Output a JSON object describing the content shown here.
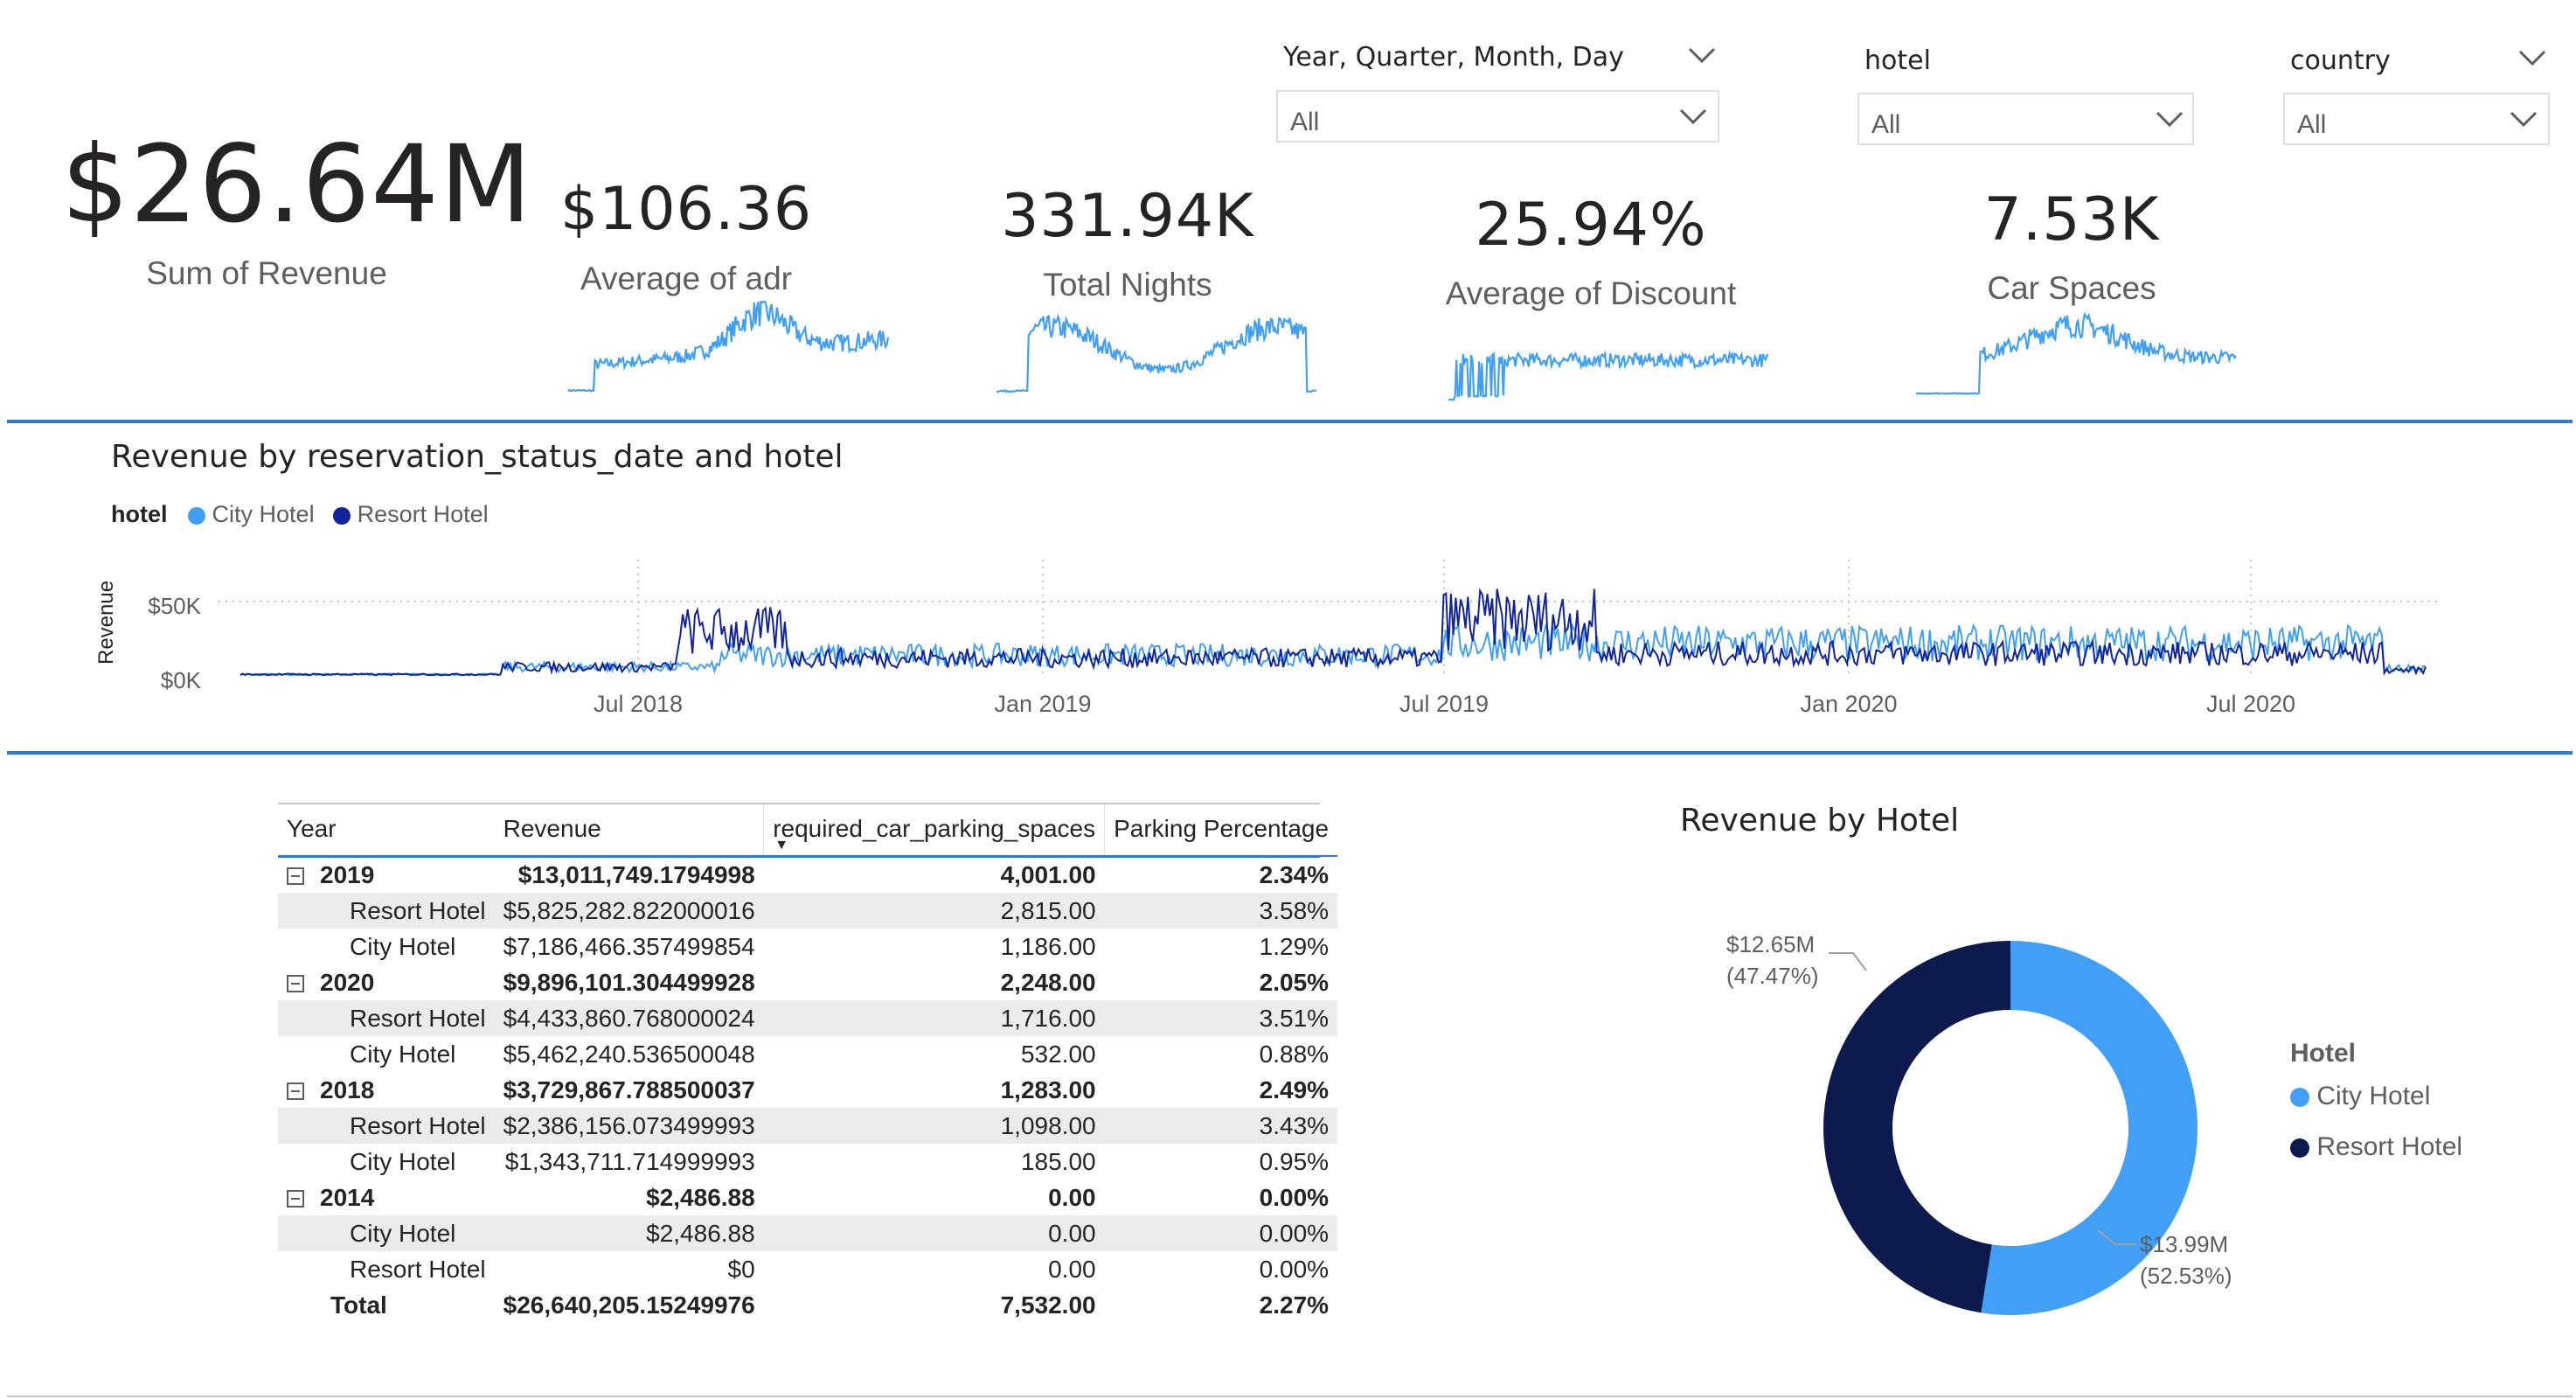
{
  "kpis": {
    "revenue": {
      "value": "$26.64M",
      "label": "Sum of Revenue"
    },
    "adr": {
      "value": "$106.36",
      "label": "Average of adr"
    },
    "nights": {
      "value": "331.94K",
      "label": "Total Nights"
    },
    "discount": {
      "value": "25.94%",
      "label": "Average of Discount"
    },
    "car_spaces": {
      "value": "7.53K",
      "label": "Car Spaces"
    }
  },
  "slicers": {
    "date": {
      "title": "Year, Quarter, Month, Day",
      "value": "All"
    },
    "hotel": {
      "title": "hotel",
      "value": "All"
    },
    "country": {
      "title": "country",
      "value": "All"
    }
  },
  "line_chart": {
    "title": "Revenue by reservation_status_date and hotel",
    "legend_title": "hotel",
    "legend_items": [
      "City Hotel",
      "Resort Hotel"
    ],
    "y_axis_label": "Revenue",
    "y_ticks": [
      "$50K",
      "$0K"
    ],
    "x_ticks": [
      "Jul 2018",
      "Jan 2019",
      "Jul 2019",
      "Jan 2020",
      "Jul 2020"
    ]
  },
  "matrix": {
    "headers": [
      "Year",
      "Revenue",
      "required_car_parking_spaces",
      "Parking Percentage"
    ],
    "rows": [
      {
        "level": "year",
        "label": "2019",
        "revenue": "$13,011,749.1794998",
        "parking": "4,001.00",
        "pct": "2.34%"
      },
      {
        "level": "hotel",
        "label": "Resort Hotel",
        "revenue": "$5,825,282.822000016",
        "parking": "2,815.00",
        "pct": "3.58%"
      },
      {
        "level": "hotel",
        "label": "City Hotel",
        "revenue": "$7,186,466.357499854",
        "parking": "1,186.00",
        "pct": "1.29%"
      },
      {
        "level": "year",
        "label": "2020",
        "revenue": "$9,896,101.304499928",
        "parking": "2,248.00",
        "pct": "2.05%"
      },
      {
        "level": "hotel",
        "label": "Resort Hotel",
        "revenue": "$4,433,860.768000024",
        "parking": "1,716.00",
        "pct": "3.51%"
      },
      {
        "level": "hotel",
        "label": "City Hotel",
        "revenue": "$5,462,240.536500048",
        "parking": "532.00",
        "pct": "0.88%"
      },
      {
        "level": "year",
        "label": "2018",
        "revenue": "$3,729,867.788500037",
        "parking": "1,283.00",
        "pct": "2.49%"
      },
      {
        "level": "hotel",
        "label": "Resort Hotel",
        "revenue": "$2,386,156.073499993",
        "parking": "1,098.00",
        "pct": "3.43%"
      },
      {
        "level": "hotel",
        "label": "City Hotel",
        "revenue": "$1,343,711.714999993",
        "parking": "185.00",
        "pct": "0.95%"
      },
      {
        "level": "year",
        "label": "2014",
        "revenue": "$2,486.88",
        "parking": "0.00",
        "pct": "0.00%"
      },
      {
        "level": "hotel",
        "label": "City Hotel",
        "revenue": "$2,486.88",
        "parking": "0.00",
        "pct": "0.00%"
      },
      {
        "level": "hotel",
        "label": "Resort Hotel",
        "revenue": "$0",
        "parking": "0.00",
        "pct": "0.00%"
      },
      {
        "level": "total",
        "label": "Total",
        "revenue": "$26,640,205.15249976",
        "parking": "7,532.00",
        "pct": "2.27%"
      }
    ]
  },
  "donut": {
    "title": "Revenue by Hotel",
    "legend_title": "Hotel",
    "legend_items": [
      "City Hotel",
      "Resort Hotel"
    ],
    "label_resort_value": "$12.65M",
    "label_resort_pct": "(47.47%)",
    "label_city_value": "$13.99M",
    "label_city_pct": "(52.53%)"
  },
  "colors": {
    "city_hotel": "#41a0f5",
    "resort_hotel": "#0c1a4e",
    "resort_line": "#12239e",
    "accent": "#2b7bd6"
  },
  "chart_data": {
    "type": "pie",
    "title": "Revenue by Hotel",
    "categories": [
      "City Hotel",
      "Resort Hotel"
    ],
    "values": [
      13.99,
      12.65
    ],
    "percentages": [
      52.53,
      47.47
    ],
    "unit": "$M"
  }
}
